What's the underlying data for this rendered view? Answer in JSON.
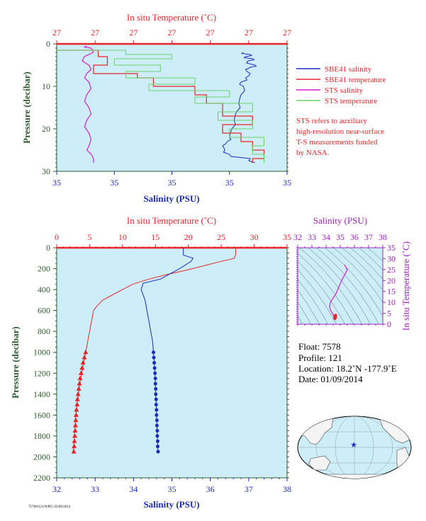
{
  "colors": {
    "panel_bg": "#cdeef8",
    "salinity_blue": "#1a2bbd",
    "temperature_red": "#e8262a",
    "sts_magenta": "#d51fd0",
    "sts_green": "#6ad06a",
    "axis_green": "#2d5a2d",
    "purple": "#a020c0"
  },
  "top_panel": {
    "top_axis_title": "In situ Temperature (˚C)",
    "top_tick_labels": [
      "27",
      "27",
      "27",
      "27",
      "27",
      "27",
      "27"
    ],
    "bottom_axis_title": "Salinity (PSU)",
    "bottom_tick_labels": [
      "35",
      "35",
      "35",
      "35",
      "35"
    ],
    "y_axis_title": "Pressure (decibar)",
    "y_tick_labels": [
      "0",
      "10",
      "20",
      "30"
    ],
    "legend": [
      {
        "label": "SBE41 salinity",
        "color_key": "salinity_blue"
      },
      {
        "label": "SBE41 temperature",
        "color_key": "temperature_red"
      },
      {
        "label": "STS salinity",
        "color_key": "sts_magenta"
      },
      {
        "label": "STS temperature",
        "color_key": "sts_green"
      }
    ],
    "note_lines": [
      "STS refers to auxiliary",
      "high-resolution near-surface",
      "T-S measurements funded",
      "by NASA."
    ]
  },
  "main_panel": {
    "top_axis_title": "In situ Temperature (˚C)",
    "top_tick_labels": [
      "0",
      "5",
      "10",
      "15",
      "20",
      "25",
      "30",
      "35"
    ],
    "bottom_axis_title": "Salinity (PSU)",
    "bottom_tick_labels": [
      "32",
      "33",
      "34",
      "35",
      "36",
      "37",
      "38"
    ],
    "y_axis_title": "Pressure (decibar)",
    "y_tick_labels": [
      "0",
      "200",
      "400",
      "600",
      "800",
      "1000",
      "1200",
      "1400",
      "1600",
      "1800",
      "2000",
      "2200"
    ]
  },
  "ts_panel": {
    "top_axis_title": "Salinity (PSU)",
    "top_tick_labels": [
      "32",
      "33",
      "34",
      "35",
      "36",
      "37",
      "38"
    ],
    "right_axis_title": "In situ Temperature (˚C)",
    "right_tick_labels": [
      "35",
      "30",
      "25",
      "20",
      "15",
      "10",
      "5",
      "0"
    ]
  },
  "info": {
    "float": "Float:  7578",
    "profile": "Profile:  121",
    "location": "Location:  18.2˚N  -177.9˚E",
    "date": "Date:  01/09/2014"
  },
  "footer_code": "7578/0121/WPO, 02/09/2014",
  "chart_data": [
    {
      "type": "line",
      "title": "",
      "xlabel_top": "In situ Temperature (˚C)",
      "xlabel_bottom": "Salinity (PSU)",
      "ylabel": "Pressure (decibar)",
      "ylim": [
        30,
        0
      ],
      "series": [
        {
          "name": "SBE41 salinity",
          "x_axis": "salinity_relative",
          "points": [
            [
              0.81,
              2
            ],
            [
              0.84,
              2.5
            ],
            [
              0.82,
              3
            ],
            [
              0.85,
              3.5
            ],
            [
              0.83,
              4
            ],
            [
              0.86,
              5
            ],
            [
              0.84,
              5.5
            ],
            [
              0.82,
              6
            ],
            [
              0.84,
              7
            ],
            [
              0.82,
              8
            ],
            [
              0.8,
              9
            ],
            [
              0.81,
              10
            ],
            [
              0.8,
              12
            ],
            [
              0.79,
              14
            ],
            [
              0.78,
              16
            ],
            [
              0.77,
              18
            ],
            [
              0.76,
              20
            ],
            [
              0.75,
              22
            ],
            [
              0.74,
              23
            ],
            [
              0.72,
              24
            ],
            [
              0.73,
              25
            ],
            [
              0.75,
              26
            ],
            [
              0.84,
              27
            ],
            [
              0.86,
              28
            ]
          ]
        },
        {
          "name": "SBE41 temperature",
          "x_axis": "temperature_relative",
          "points": [
            [
              0.0,
              1.5
            ],
            [
              0.18,
              3
            ],
            [
              0.22,
              5
            ],
            [
              0.16,
              7
            ],
            [
              0.35,
              8
            ],
            [
              0.42,
              10
            ],
            [
              0.6,
              12
            ],
            [
              0.65,
              14
            ],
            [
              0.72,
              17
            ],
            [
              0.85,
              19
            ],
            [
              0.72,
              21
            ],
            [
              0.8,
              23
            ],
            [
              0.85,
              25
            ],
            [
              0.9,
              27
            ],
            [
              0.85,
              28
            ]
          ]
        },
        {
          "name": "STS salinity",
          "x_axis": "salinity_relative",
          "points": [
            [
              0.13,
              0.5
            ],
            [
              0.15,
              1
            ],
            [
              0.12,
              3
            ],
            [
              0.14,
              5
            ],
            [
              0.13,
              7
            ],
            [
              0.14,
              9
            ],
            [
              0.13,
              12
            ],
            [
              0.14,
              15
            ],
            [
              0.13,
              18
            ],
            [
              0.14,
              21
            ],
            [
              0.14,
              24
            ],
            [
              0.15,
              26
            ],
            [
              0.16,
              28
            ]
          ]
        },
        {
          "name": "STS temperature",
          "x_axis": "temperature_relative",
          "points": [
            [
              0.0,
              1.5
            ],
            [
              0.3,
              2.5
            ],
            [
              0.5,
              3.5
            ],
            [
              0.25,
              5
            ],
            [
              0.45,
              6.5
            ],
            [
              0.3,
              8
            ],
            [
              0.6,
              9.5
            ],
            [
              0.4,
              11
            ],
            [
              0.75,
              12.5
            ],
            [
              0.6,
              14
            ],
            [
              0.85,
              16
            ],
            [
              0.7,
              18
            ],
            [
              0.85,
              20
            ],
            [
              0.75,
              22
            ],
            [
              0.9,
              24
            ],
            [
              0.85,
              26
            ],
            [
              0.9,
              28
            ]
          ]
        }
      ]
    },
    {
      "type": "line",
      "title": "",
      "xlabel_top": "In situ Temperature (˚C)",
      "xlabel_bottom": "Salinity (PSU)",
      "ylabel": "Pressure (decibar)",
      "xlim_temperature": [
        0,
        35
      ],
      "xlim_salinity": [
        32,
        38
      ],
      "ylim": [
        2200,
        0
      ],
      "series": [
        {
          "name": "Temperature",
          "x_axis": "temperature",
          "points": [
            [
              27.2,
              0
            ],
            [
              27.2,
              60
            ],
            [
              27.0,
              100
            ],
            [
              25.0,
              130
            ],
            [
              22.5,
              170
            ],
            [
              20.0,
              210
            ],
            [
              16.5,
              260
            ],
            [
              14.0,
              300
            ],
            [
              11.5,
              350
            ],
            [
              10.0,
              400
            ],
            [
              8.5,
              450
            ],
            [
              7.0,
              500
            ],
            [
              6.2,
              550
            ],
            [
              5.6,
              600
            ],
            [
              5.3,
              700
            ],
            [
              5.0,
              800
            ],
            [
              4.7,
              900
            ],
            [
              4.4,
              1000
            ],
            [
              4.1,
              1100
            ],
            [
              3.8,
              1200
            ],
            [
              3.5,
              1300
            ],
            [
              3.3,
              1400
            ],
            [
              3.1,
              1500
            ],
            [
              2.9,
              1600
            ],
            [
              2.8,
              1700
            ],
            [
              2.7,
              1800
            ],
            [
              2.6,
              1900
            ],
            [
              2.5,
              1950
            ]
          ]
        },
        {
          "name": "Salinity",
          "x_axis": "salinity",
          "points": [
            [
              35.3,
              0
            ],
            [
              35.3,
              70
            ],
            [
              35.55,
              100
            ],
            [
              35.5,
              130
            ],
            [
              35.2,
              200
            ],
            [
              34.7,
              300
            ],
            [
              34.25,
              340
            ],
            [
              34.2,
              400
            ],
            [
              34.25,
              450
            ],
            [
              34.3,
              500
            ],
            [
              34.35,
              600
            ],
            [
              34.4,
              700
            ],
            [
              34.45,
              800
            ],
            [
              34.5,
              900
            ],
            [
              34.52,
              1000
            ],
            [
              34.54,
              1100
            ],
            [
              34.56,
              1200
            ],
            [
              34.57,
              1300
            ],
            [
              34.58,
              1400
            ],
            [
              34.59,
              1500
            ],
            [
              34.6,
              1600
            ],
            [
              34.61,
              1700
            ],
            [
              34.62,
              1800
            ],
            [
              34.63,
              1900
            ],
            [
              34.64,
              1950
            ]
          ]
        },
        {
          "name": "Temperature (bottle markers)",
          "x_axis": "temperature",
          "points": [
            [
              4.4,
              1000
            ],
            [
              4.2,
              1050
            ],
            [
              4.0,
              1100
            ],
            [
              3.85,
              1150
            ],
            [
              3.7,
              1200
            ],
            [
              3.55,
              1250
            ],
            [
              3.45,
              1300
            ],
            [
              3.35,
              1350
            ],
            [
              3.25,
              1400
            ],
            [
              3.15,
              1450
            ],
            [
              3.1,
              1500
            ],
            [
              3.0,
              1550
            ],
            [
              2.95,
              1600
            ],
            [
              2.9,
              1650
            ],
            [
              2.85,
              1700
            ],
            [
              2.8,
              1750
            ],
            [
              2.75,
              1800
            ],
            [
              2.7,
              1850
            ],
            [
              2.65,
              1900
            ],
            [
              2.6,
              1950
            ]
          ]
        },
        {
          "name": "Salinity (bottle markers)",
          "x_axis": "salinity",
          "points": [
            [
              34.52,
              1000
            ],
            [
              34.53,
              1050
            ],
            [
              34.54,
              1100
            ],
            [
              34.55,
              1150
            ],
            [
              34.56,
              1200
            ],
            [
              34.57,
              1250
            ],
            [
              34.57,
              1300
            ],
            [
              34.58,
              1350
            ],
            [
              34.58,
              1400
            ],
            [
              34.59,
              1450
            ],
            [
              34.59,
              1500
            ],
            [
              34.6,
              1550
            ],
            [
              34.6,
              1600
            ],
            [
              34.61,
              1650
            ],
            [
              34.61,
              1700
            ],
            [
              34.62,
              1750
            ],
            [
              34.62,
              1800
            ],
            [
              34.63,
              1850
            ],
            [
              34.63,
              1900
            ],
            [
              34.64,
              1950
            ]
          ]
        }
      ]
    },
    {
      "type": "line",
      "title": "",
      "xlabel": "Salinity (PSU)",
      "ylabel": "In situ Temperature (˚C)",
      "xlim": [
        32,
        38
      ],
      "ylim": [
        0,
        35
      ],
      "series": [
        {
          "name": "T-S",
          "points": [
            [
              35.3,
              27.2
            ],
            [
              35.5,
              25
            ],
            [
              35.1,
              20
            ],
            [
              34.7,
              14
            ],
            [
              34.3,
              10
            ],
            [
              34.25,
              8
            ],
            [
              34.3,
              6.5
            ],
            [
              34.4,
              5.5
            ],
            [
              34.5,
              4.4
            ],
            [
              34.6,
              3.5
            ],
            [
              34.64,
              2.6
            ]
          ]
        }
      ]
    }
  ]
}
